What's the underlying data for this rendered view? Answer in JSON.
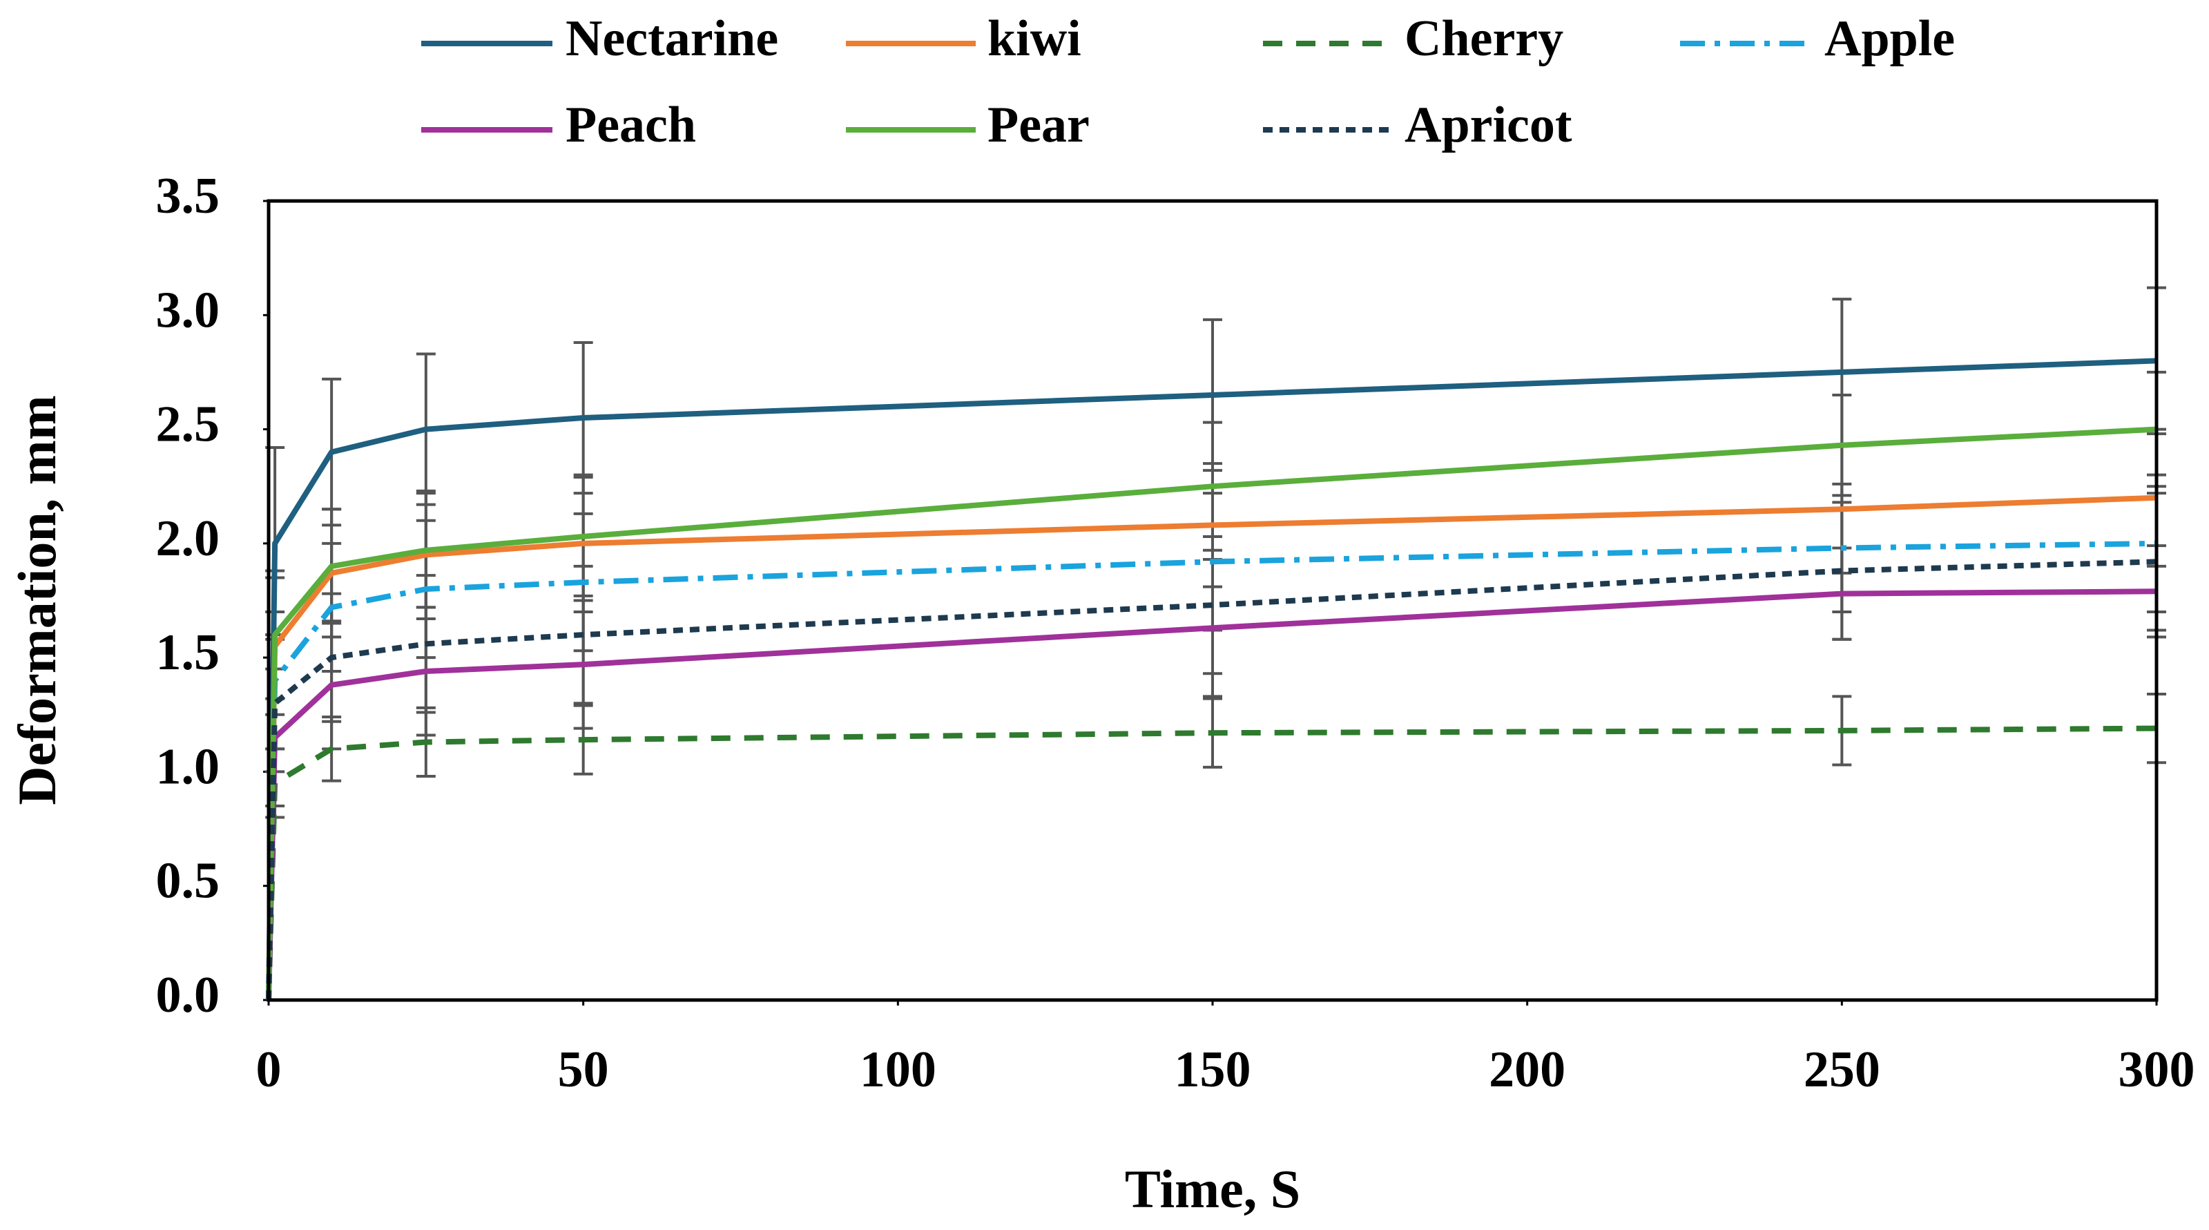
{
  "chart_data": {
    "type": "line",
    "x_label": "Time, S",
    "y_label": "Deformation, mm",
    "x": [
      0,
      1,
      10,
      25,
      50,
      150,
      250,
      300
    ],
    "xlim": [
      0,
      300
    ],
    "xticks": [
      0,
      50,
      100,
      150,
      200,
      250,
      300
    ],
    "ylim": [
      0,
      3.5
    ],
    "yticks": [
      {
        "value": 0,
        "label": "0.0"
      },
      0.5,
      {
        "value": 1,
        "label": "1.0"
      },
      1.5,
      {
        "value": 2,
        "label": "2.0"
      },
      2.5,
      {
        "value": 3,
        "label": "3.0"
      },
      3.5
    ],
    "grid": false,
    "legend": "top",
    "series": [
      {
        "name": "Nectarine",
        "color": "#1f5f80",
        "dash": "solid",
        "values": [
          0,
          2.0,
          2.4,
          2.5,
          2.55,
          2.65,
          2.75,
          2.8
        ],
        "errors": [
          null,
          0.42,
          0.32,
          0.33,
          0.33,
          0.33,
          0.32,
          0.32
        ]
      },
      {
        "name": "kiwi",
        "color": "#ed7d31",
        "dash": "solid",
        "values": [
          0,
          1.55,
          1.87,
          1.95,
          2.0,
          2.08,
          2.15,
          2.2
        ],
        "errors": [
          null,
          0.3,
          0.28,
          0.28,
          0.3,
          0.27,
          0.28,
          0.3
        ]
      },
      {
        "name": "Cherry",
        "color": "#2e7a2e",
        "dash": "dash",
        "values": [
          0,
          0.95,
          1.1,
          1.13,
          1.14,
          1.17,
          1.18,
          1.19
        ],
        "errors": [
          null,
          0.15,
          0.14,
          0.15,
          0.15,
          0.15,
          0.15,
          0.15
        ]
      },
      {
        "name": "Apple",
        "color": "#1aa3dd",
        "dash": "dashdot",
        "values": [
          0,
          1.4,
          1.72,
          1.8,
          1.83,
          1.92,
          1.98,
          2.0
        ],
        "errors": [
          null,
          0.3,
          0.28,
          0.3,
          0.3,
          0.3,
          0.28,
          0.3
        ]
      },
      {
        "name": "Peach",
        "color": "#a0319a",
        "dash": "solid",
        "values": [
          0,
          1.15,
          1.38,
          1.44,
          1.47,
          1.63,
          1.78,
          1.79
        ],
        "errors": [
          null,
          0.3,
          0.28,
          0.28,
          0.28,
          0.3,
          0.2,
          0.2
        ]
      },
      {
        "name": "Pear",
        "color": "#5aae3c",
        "dash": "solid",
        "values": [
          0,
          1.6,
          1.9,
          1.97,
          2.03,
          2.25,
          2.43,
          2.5
        ],
        "errors": [
          null,
          0.28,
          0.25,
          0.25,
          0.26,
          0.28,
          0.22,
          0.25
        ]
      },
      {
        "name": "Apricot",
        "color": "#1e3a4f",
        "dash": "shortdash",
        "values": [
          0,
          1.3,
          1.5,
          1.56,
          1.6,
          1.73,
          1.88,
          1.92
        ],
        "errors": [
          null,
          0.3,
          0.28,
          0.3,
          0.3,
          0.3,
          0.3,
          0.3
        ]
      }
    ]
  }
}
